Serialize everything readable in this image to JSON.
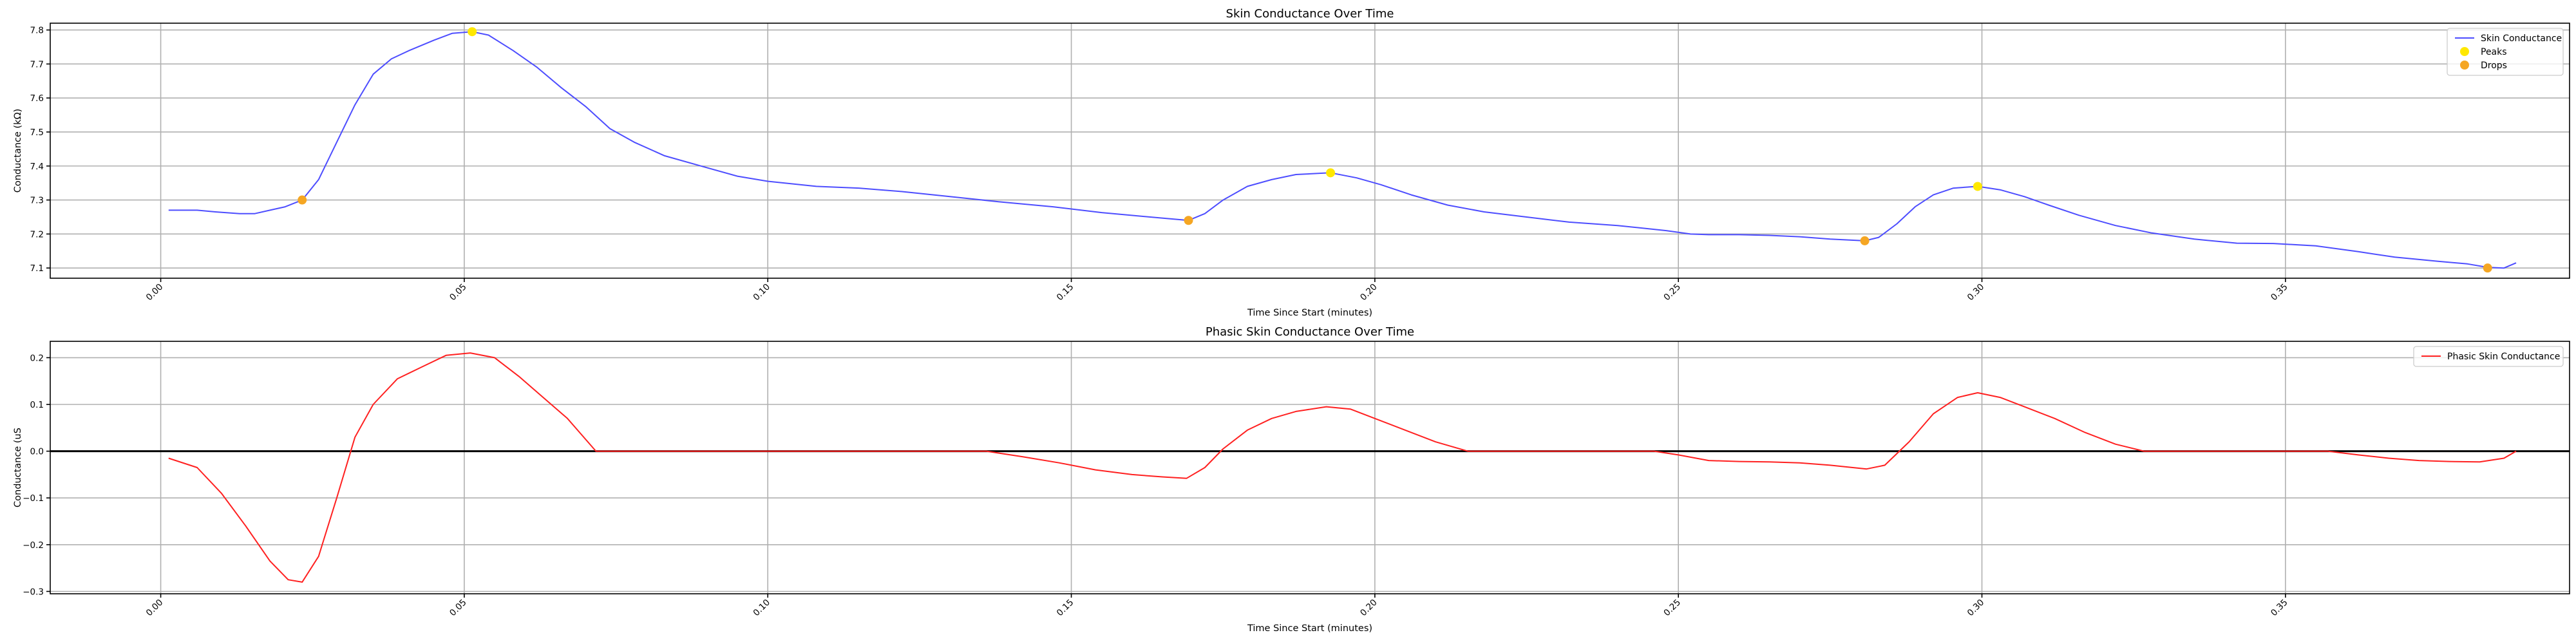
{
  "chart_data": [
    {
      "type": "line",
      "title": "Skin Conductance Over Time",
      "xlabel": "Time Since Start (minutes)",
      "ylabel": "Conductance (kΩ)",
      "xlim": [
        -0.0182,
        0.3968
      ],
      "ylim": [
        7.07,
        7.82
      ],
      "xticks": [
        0.0,
        0.05,
        0.1,
        0.15,
        0.2,
        0.25,
        0.3,
        0.35
      ],
      "xticklabels": [
        "0.00",
        "0.05",
        "0.10",
        "0.15",
        "0.20",
        "0.25",
        "0.30",
        "0.35"
      ],
      "yticks": [
        7.1,
        7.2,
        7.3,
        7.4,
        7.5,
        7.6,
        7.7,
        7.8
      ],
      "yticklabels": [
        "7.1",
        "7.2",
        "7.3",
        "7.4",
        "7.5",
        "7.6",
        "7.7",
        "7.8"
      ],
      "grid": true,
      "legend_position": "top-right",
      "series": [
        {
          "name": "Skin Conductance",
          "kind": "line",
          "color": "#4d4dff",
          "x": [
            0.0013,
            0.006,
            0.009,
            0.013,
            0.0155,
            0.018,
            0.0205,
            0.0233,
            0.026,
            0.029,
            0.032,
            0.035,
            0.038,
            0.041,
            0.045,
            0.048,
            0.0513,
            0.054,
            0.058,
            0.062,
            0.066,
            0.07,
            0.074,
            0.078,
            0.083,
            0.089,
            0.095,
            0.1,
            0.108,
            0.115,
            0.122,
            0.13,
            0.138,
            0.147,
            0.155,
            0.163,
            0.1693,
            0.172,
            0.175,
            0.179,
            0.183,
            0.187,
            0.1927,
            0.197,
            0.201,
            0.206,
            0.212,
            0.218,
            0.225,
            0.232,
            0.24,
            0.248,
            0.252,
            0.255,
            0.26,
            0.265,
            0.27,
            0.275,
            0.2807,
            0.283,
            0.286,
            0.289,
            0.292,
            0.2953,
            0.2993,
            0.303,
            0.307,
            0.311,
            0.316,
            0.322,
            0.328,
            0.335,
            0.342,
            0.348,
            0.355,
            0.362,
            0.368,
            0.375,
            0.38,
            0.3833,
            0.386,
            0.388
          ],
          "y": [
            7.27,
            7.27,
            7.265,
            7.26,
            7.26,
            7.27,
            7.28,
            7.3,
            7.36,
            7.47,
            7.58,
            7.67,
            7.715,
            7.74,
            7.77,
            7.79,
            7.795,
            7.785,
            7.74,
            7.69,
            7.63,
            7.575,
            7.51,
            7.47,
            7.43,
            7.4,
            7.37,
            7.355,
            7.34,
            7.335,
            7.325,
            7.31,
            7.295,
            7.28,
            7.263,
            7.25,
            7.24,
            7.26,
            7.3,
            7.34,
            7.36,
            7.375,
            7.38,
            7.365,
            7.345,
            7.315,
            7.285,
            7.265,
            7.25,
            7.235,
            7.225,
            7.21,
            7.2,
            7.198,
            7.198,
            7.196,
            7.192,
            7.185,
            7.18,
            7.19,
            7.23,
            7.28,
            7.315,
            7.335,
            7.34,
            7.33,
            7.31,
            7.285,
            7.255,
            7.225,
            7.203,
            7.185,
            7.173,
            7.172,
            7.165,
            7.148,
            7.132,
            7.12,
            7.112,
            7.102,
            7.1,
            7.115
          ]
        },
        {
          "name": "Peaks",
          "kind": "scatter",
          "color": "#ffe800",
          "x": [
            0.0513,
            0.1927,
            0.2993
          ],
          "y": [
            7.795,
            7.38,
            7.34
          ]
        },
        {
          "name": "Drops",
          "kind": "scatter",
          "color": "#f5a623",
          "x": [
            0.0233,
            0.1693,
            0.2807,
            0.3833
          ],
          "y": [
            7.3,
            7.24,
            7.18,
            7.1
          ]
        }
      ]
    },
    {
      "type": "line",
      "title": "Phasic Skin Conductance Over Time",
      "xlabel": "Time Since Start (minutes)",
      "ylabel": "Conductance (uS",
      "xlim": [
        -0.0182,
        0.3968
      ],
      "ylim": [
        -0.305,
        0.235
      ],
      "xticks": [
        0.0,
        0.05,
        0.1,
        0.15,
        0.2,
        0.25,
        0.3,
        0.35
      ],
      "xticklabels": [
        "0.00",
        "0.05",
        "0.10",
        "0.15",
        "0.20",
        "0.25",
        "0.30",
        "0.35"
      ],
      "yticks": [
        -0.3,
        -0.2,
        -0.1,
        0.0,
        0.1,
        0.2
      ],
      "yticklabels": [
        "−0.3",
        "−0.2",
        "−0.1",
        "0.0",
        "0.1",
        "0.2"
      ],
      "grid": true,
      "legend_position": "top-right",
      "hline": 0.0,
      "series": [
        {
          "name": "Phasic Skin Conductance",
          "kind": "line",
          "color": "#ff2020",
          "x": [
            0.0013,
            0.006,
            0.01,
            0.014,
            0.018,
            0.021,
            0.0233,
            0.026,
            0.029,
            0.032,
            0.035,
            0.039,
            0.043,
            0.047,
            0.051,
            0.055,
            0.059,
            0.063,
            0.067,
            0.0717,
            0.136,
            0.142,
            0.148,
            0.154,
            0.16,
            0.165,
            0.169,
            0.172,
            0.175,
            0.179,
            0.183,
            0.187,
            0.192,
            0.196,
            0.2,
            0.205,
            0.21,
            0.2153,
            0.246,
            0.25,
            0.255,
            0.26,
            0.265,
            0.27,
            0.275,
            0.281,
            0.284,
            0.288,
            0.292,
            0.296,
            0.2993,
            0.303,
            0.307,
            0.312,
            0.317,
            0.322,
            0.3267,
            0.357,
            0.362,
            0.367,
            0.372,
            0.377,
            0.382,
            0.386,
            0.388
          ],
          "y": [
            -0.015,
            -0.035,
            -0.09,
            -0.16,
            -0.235,
            -0.275,
            -0.28,
            -0.225,
            -0.1,
            0.03,
            0.1,
            0.155,
            0.18,
            0.205,
            0.21,
            0.2,
            0.16,
            0.115,
            0.07,
            0.0,
            0.0,
            -0.012,
            -0.025,
            -0.04,
            -0.05,
            -0.055,
            -0.058,
            -0.035,
            0.005,
            0.045,
            0.07,
            0.085,
            0.095,
            0.09,
            0.07,
            0.045,
            0.02,
            0.0,
            0.0,
            -0.008,
            -0.02,
            -0.022,
            -0.023,
            -0.025,
            -0.03,
            -0.038,
            -0.03,
            0.02,
            0.08,
            0.115,
            0.125,
            0.115,
            0.095,
            0.07,
            0.04,
            0.015,
            0.0,
            0.0,
            -0.008,
            -0.015,
            -0.02,
            -0.022,
            -0.023,
            -0.015,
            0.0
          ]
        }
      ]
    }
  ]
}
